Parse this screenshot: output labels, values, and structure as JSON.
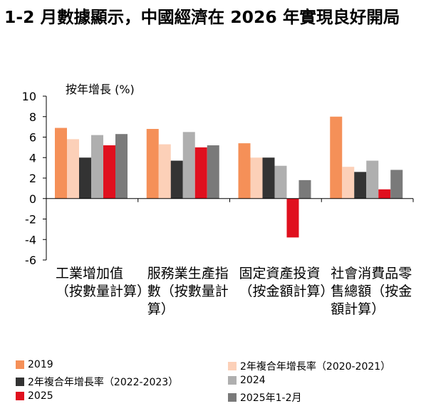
{
  "title": "1-2 月數據顯示，中國經濟在 2026 年實現良好開局",
  "chart_data": {
    "type": "bar",
    "ylabel": "按年增長 (%)",
    "ylim": [
      -6,
      10
    ],
    "yticks": [
      10,
      8,
      6,
      4,
      2,
      0,
      -2,
      -4,
      -6
    ],
    "grid": false,
    "legend_position": "bottom",
    "categories": [
      "工業增加值（按數量計算）",
      "服務業生產指數（按數量計算）",
      "固定資產投資（按金額計算）",
      "社會消費品零售總額（按金額計算）"
    ],
    "series": [
      {
        "name": "2019",
        "color": "#F59058",
        "values": [
          6.9,
          6.8,
          5.4,
          8.0
        ]
      },
      {
        "name": "2年複合年增長率（2020-2021）",
        "color": "#FCD0B8",
        "values": [
          5.8,
          5.3,
          4.0,
          3.1
        ]
      },
      {
        "name": "2年複合年增長率（2022-2023）",
        "color": "#333333",
        "values": [
          4.0,
          3.7,
          4.0,
          2.6
        ]
      },
      {
        "name": "2024",
        "color": "#AFAFAF",
        "values": [
          6.2,
          6.5,
          3.2,
          3.7
        ]
      },
      {
        "name": "2025",
        "color": "#E0101E",
        "values": [
          5.2,
          5.0,
          -3.8,
          0.9
        ]
      },
      {
        "name": "2025年1-2月",
        "color": "#7A7A7A",
        "values": [
          6.3,
          5.2,
          1.8,
          2.8
        ]
      }
    ]
  }
}
